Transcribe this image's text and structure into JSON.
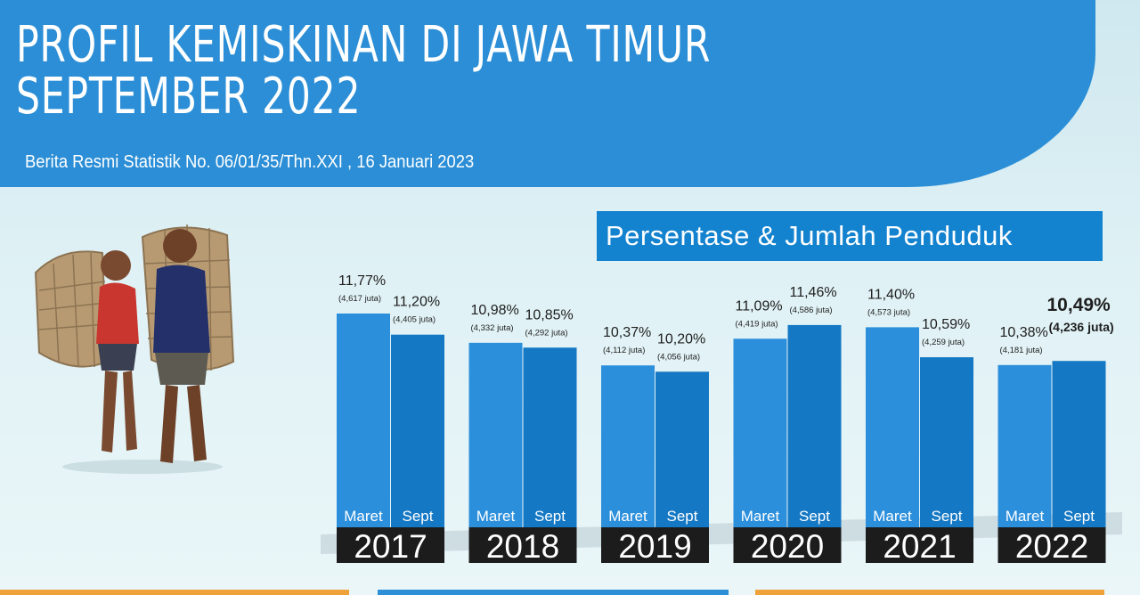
{
  "header": {
    "title_line1": "PROFIL KEMISKINAN DI JAWA TIMUR",
    "title_line2": "SEPTEMBER 2022",
    "subtitle": "Berita Resmi Statistik No. 06/01/35/Thn.XXI , 16 Januari 2023"
  },
  "chart_data": {
    "type": "bar",
    "title": "Persentase & Jumlah Penduduk",
    "categories": [
      {
        "year": "2017",
        "period": "Maret",
        "percent": 11.77,
        "label": "11,77%",
        "count_label": "(4,617 juta)"
      },
      {
        "year": "2017",
        "period": "Sept",
        "percent": 11.2,
        "label": "11,20%",
        "count_label": "(4,405 juta)"
      },
      {
        "year": "2018",
        "period": "Maret",
        "percent": 10.98,
        "label": "10,98%",
        "count_label": "(4,332 juta)"
      },
      {
        "year": "2018",
        "period": "Sept",
        "percent": 10.85,
        "label": "10,85%",
        "count_label": "(4,292 juta)"
      },
      {
        "year": "2019",
        "period": "Maret",
        "percent": 10.37,
        "label": "10,37%",
        "count_label": "(4,112 juta)"
      },
      {
        "year": "2019",
        "period": "Sept",
        "percent": 10.2,
        "label": "10,20%",
        "count_label": "(4,056 juta)"
      },
      {
        "year": "2020",
        "period": "Maret",
        "percent": 11.09,
        "label": "11,09%",
        "count_label": "(4,419 juta)"
      },
      {
        "year": "2020",
        "period": "Sept",
        "percent": 11.46,
        "label": "11,46%",
        "count_label": "(4,586 juta)"
      },
      {
        "year": "2021",
        "period": "Maret",
        "percent": 11.4,
        "label": "11,40%",
        "count_label": "(4,573 juta)"
      },
      {
        "year": "2021",
        "period": "Sept",
        "percent": 10.59,
        "label": "10,59%",
        "count_label": "(4,259 juta)"
      },
      {
        "year": "2022",
        "period": "Maret",
        "percent": 10.38,
        "label": "10,38%",
        "count_label": "(4,181 juta)"
      },
      {
        "year": "2022",
        "period": "Sept",
        "percent": 10.49,
        "label": "10,49%",
        "count_label": "(4,236 juta)",
        "highlight": true
      }
    ],
    "years": [
      "2017",
      "2018",
      "2019",
      "2020",
      "2021",
      "2022"
    ],
    "colors": {
      "maret": "#2b8fdc",
      "sept": "#1478c4",
      "year_band": "#1c1c1c",
      "header": "#2b8ed6",
      "title_box": "#1483cf"
    }
  },
  "illustration": {
    "icon": "children-carrying-baskets-photo"
  }
}
